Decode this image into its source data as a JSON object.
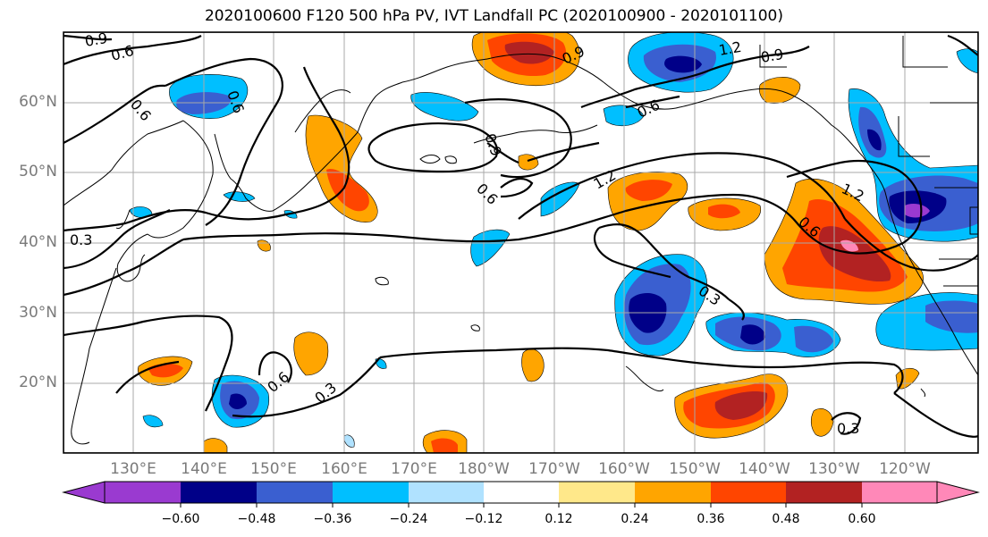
{
  "title": "2020100600 F120 500 hPa PV, IVT Landfall PC (2020100900 - 2020101100)",
  "lat_labels": [
    "60°N",
    "50°N",
    "40°N",
    "30°N",
    "20°N"
  ],
  "lon_labels": [
    "130°E",
    "140°E",
    "150°E",
    "160°E",
    "170°E",
    "180°W",
    "170°W",
    "160°W",
    "150°W",
    "140°W",
    "130°W",
    "120°W"
  ],
  "colorbar": {
    "ticks": [
      "−0.60",
      "−0.48",
      "−0.36",
      "−0.24",
      "−0.12",
      "0.12",
      "0.24",
      "0.36",
      "0.48",
      "0.60"
    ],
    "colors": [
      "#9a3ad0",
      "#000088",
      "#3a5fd0",
      "#00bfff",
      "#b0e2ff",
      "#ffffff",
      "#ffe88a",
      "#ffa500",
      "#ff4500",
      "#b22222",
      "#ff88b8"
    ]
  },
  "contour_labels": [
    "0.9",
    "0.6",
    "0.6",
    "0.6",
    "0.9",
    "0.6",
    "0.9",
    "1.2",
    "0.9",
    "1.2",
    "0.3",
    "0.6",
    "1.2",
    "0.6",
    "0.3",
    "0.6",
    "0.3",
    "0.3"
  ]
}
